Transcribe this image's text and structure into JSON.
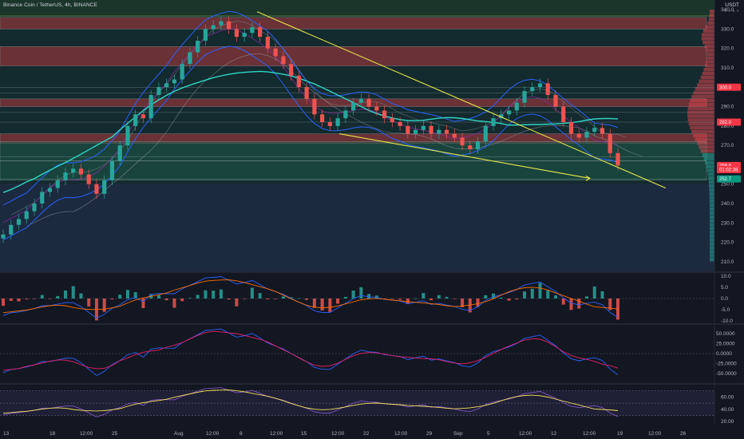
{
  "header": {
    "symbol_title": "Binance Coin / TetherUS, 4h, BINANCE",
    "currency": "USDT",
    "currency_sub": "⚙ ∨ ∧ ∨"
  },
  "chart_data": [
    {
      "type": "candlestick",
      "title": "Binance Coin / TetherUS, 4h, BINANCE",
      "yunit": "USDT",
      "ylim": [
        205,
        345
      ],
      "yticks": [
        210,
        220,
        230,
        240,
        250,
        260,
        270,
        280,
        290,
        300,
        310,
        320,
        330,
        340
      ],
      "xticks": [
        "13",
        "18",
        "12:00",
        "25",
        "Aug",
        "12:00",
        "8",
        "12:00",
        "15",
        "12:00",
        "22",
        "12:00",
        "29",
        "Sep",
        "5",
        "12:00",
        "12",
        "12:00",
        "19",
        "12:00",
        "26"
      ],
      "grid": true,
      "close_series": [
        224,
        229,
        232,
        236,
        240,
        246,
        248,
        252,
        256,
        258,
        255,
        250,
        245,
        252,
        262,
        270,
        280,
        286,
        284,
        296,
        300,
        302,
        304,
        312,
        318,
        324,
        330,
        332,
        334,
        330,
        326,
        328,
        331,
        326,
        320,
        316,
        312,
        306,
        300,
        294,
        286,
        282,
        280,
        284,
        288,
        292,
        294,
        290,
        288,
        284,
        282,
        280,
        276,
        278,
        280,
        276,
        278,
        276,
        274,
        270,
        268,
        272,
        280,
        284,
        286,
        288,
        292,
        298,
        300,
        302,
        296,
        290,
        282,
        276,
        274,
        277,
        279,
        276,
        266,
        259.6
      ],
      "price_badges": [
        {
          "label": "300.0",
          "value": 300.0,
          "color": "#f23645"
        },
        {
          "label": "282.0",
          "value": 282.0,
          "color": "#f23645"
        },
        {
          "label": "259.6",
          "value": 259.6,
          "color": "#f23645"
        },
        {
          "label": "01:02:38",
          "value": 257.5,
          "color": "#f23645"
        },
        {
          "label": "252.7",
          "value": 252.7,
          "color": "#089981"
        }
      ],
      "zones": [
        {
          "from": 330,
          "to": 336,
          "kind": "supply"
        },
        {
          "from": 311,
          "to": 321,
          "kind": "supply"
        },
        {
          "from": 290,
          "to": 294,
          "kind": "supply"
        },
        {
          "from": 271,
          "to": 276,
          "kind": "supply"
        },
        {
          "from": 262,
          "to": 272,
          "kind": "demand"
        },
        {
          "from": 252,
          "to": 262,
          "kind": "demand"
        }
      ],
      "trendlines": [
        {
          "from_date": "Aug 10",
          "from_price": 339,
          "to_date": "Sep 23",
          "to_price": 248
        },
        {
          "from_date": "Aug 21",
          "from_price": 276,
          "to_date": "Sep 16",
          "to_price": 253
        }
      ]
    },
    {
      "type": "macd",
      "yticks": [
        10.0,
        5.0,
        0.0,
        -5.0,
        -10.0
      ],
      "ylim": [
        -12,
        12
      ]
    },
    {
      "type": "oscillator",
      "yticks": [
        50.0,
        25.0,
        0.0,
        -25.0,
        -50.0
      ],
      "ylim": [
        -60,
        60
      ]
    },
    {
      "type": "rsi",
      "yticks": [
        60.0,
        40.0,
        20.0
      ],
      "ylim": [
        15,
        80
      ],
      "band": [
        30,
        70
      ]
    }
  ],
  "colors": {
    "up": "#26a69a",
    "down": "#ef5350",
    "trend": "#e6e64a",
    "ma": "#2fd6c6",
    "bb": "#2962ff",
    "ichimoku": "#9aa0a6",
    "background": "#131722"
  }
}
